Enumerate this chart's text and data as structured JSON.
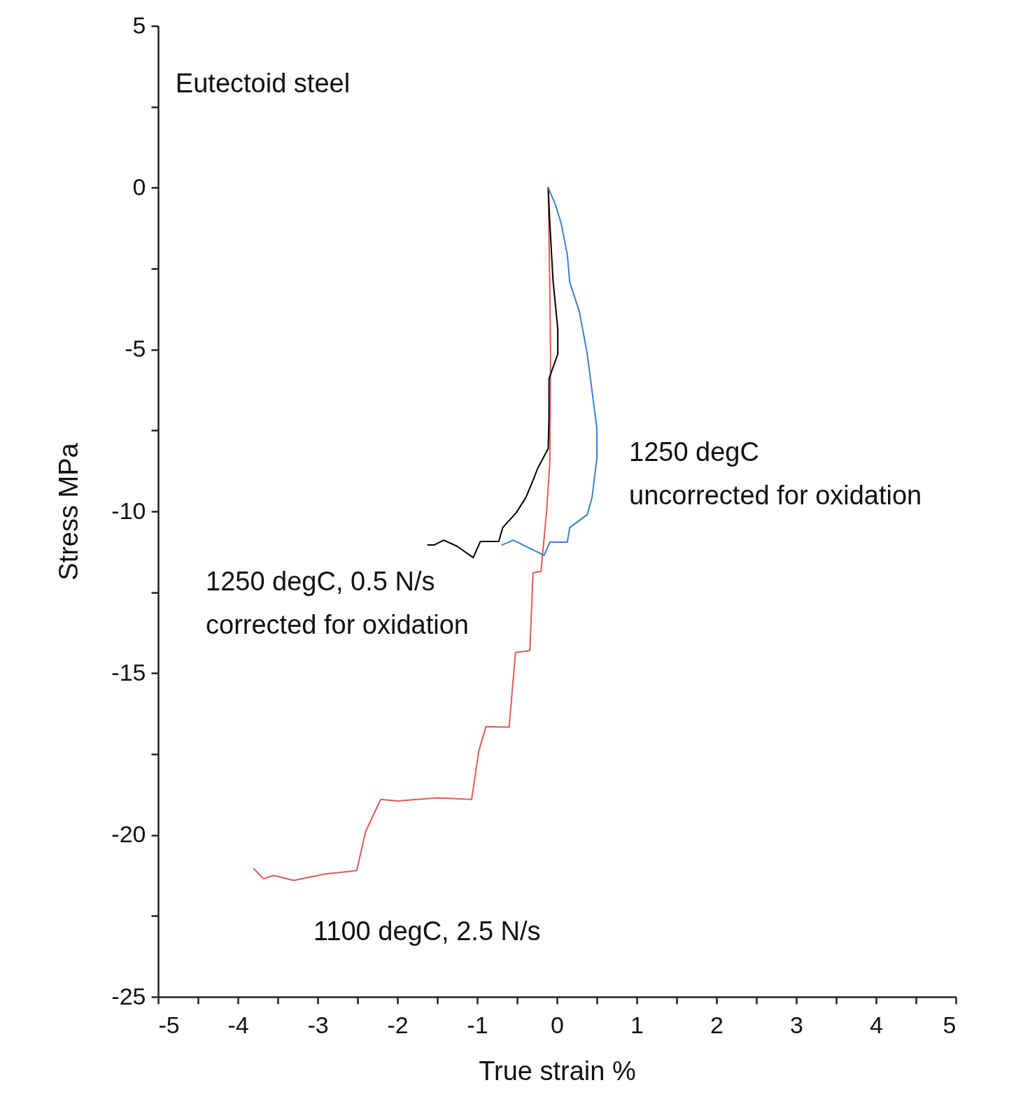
{
  "chart_data": {
    "type": "line",
    "title": "Eutectoid steel",
    "xlabel": "True strain    %",
    "ylabel": "Stress    MPa",
    "xlim": [
      -5,
      5
    ],
    "ylim": [
      -25,
      5
    ],
    "xticks": [
      -5,
      {
        "value": -4.5,
        "label": null
      },
      -4,
      {
        "value": -3.5,
        "label": null
      },
      -3,
      {
        "value": -2.5,
        "label": null
      },
      -2,
      {
        "value": -1.5,
        "label": null
      },
      -1,
      {
        "value": -0.5,
        "label": null
      },
      0,
      {
        "value": 0.5,
        "label": null
      },
      1,
      {
        "value": 1.5,
        "label": null
      },
      2,
      {
        "value": 2.5,
        "label": null
      },
      3,
      {
        "value": 3.5,
        "label": null
      },
      4,
      {
        "value": 4.5,
        "label": null
      },
      5
    ],
    "yticks": [
      -25,
      {
        "value": -22.5,
        "label": null
      },
      -20,
      {
        "value": -17.5,
        "label": null
      },
      -15,
      {
        "value": -12.5,
        "label": null
      },
      -10,
      {
        "value": -7.5,
        "label": null
      },
      -5,
      {
        "value": -2.5,
        "label": null
      },
      0,
      {
        "value": 2.5,
        "label": null
      },
      5
    ],
    "grid": false,
    "series": [
      {
        "color": "#e05a5a",
        "x": [
          -0.11,
          -0.09,
          -0.08,
          -0.09,
          -0.13,
          -0.2,
          -0.3,
          -0.34,
          -0.52,
          -0.6,
          -0.89,
          -0.98,
          -1.07,
          -1.5,
          -2.0,
          -2.21,
          -2.4,
          -2.51,
          -2.9,
          -3.3,
          -3.55,
          -3.68,
          -3.8
        ],
        "values": [
          0,
          -3.1,
          -5.2,
          -8.5,
          -10,
          -11.85,
          -11.9,
          -14.3,
          -14.36,
          -16.67,
          -16.65,
          -17.4,
          -18.9,
          -18.85,
          -18.95,
          -18.9,
          -19.9,
          -21.1,
          -21.2,
          -21.4,
          -21.25,
          -21.35,
          -21.04
        ]
      },
      {
        "color": "#000000",
        "x": [
          -0.11,
          -0.09,
          -0.05,
          0.01,
          0.01,
          -0.1,
          -0.1,
          -0.11,
          -0.24,
          -0.31,
          -0.39,
          -0.51,
          -0.68,
          -0.73,
          -0.96,
          -1.05,
          -1.25,
          -1.42,
          -1.54,
          -1.62
        ],
        "values": [
          0,
          -1.08,
          -2.85,
          -4.36,
          -5.14,
          -5.9,
          -7.06,
          -8.06,
          -8.66,
          -9.1,
          -9.57,
          -10.04,
          -10.5,
          -10.93,
          -10.93,
          -11.43,
          -11.08,
          -10.89,
          -11.04,
          -11.04
        ]
      },
      {
        "color": "#3a7fcf",
        "x": [
          -0.11,
          -0.02,
          0.05,
          0.13,
          0.16,
          0.28,
          0.38,
          0.44,
          0.5,
          0.5,
          0.44,
          0.38,
          0.16,
          0.13,
          -0.09,
          -0.16,
          -0.55,
          -0.69
        ],
        "values": [
          0,
          -0.52,
          -1.08,
          -2.07,
          -2.92,
          -3.82,
          -5.14,
          -6.29,
          -7.43,
          -8.36,
          -9.57,
          -10.1,
          -10.5,
          -10.95,
          -10.95,
          -11.36,
          -10.89,
          -11.04
        ]
      }
    ],
    "annotations": [
      "1250  degC\nuncorrected for oxidation",
      "1250  degC, 0.5 N/s\ncorrected for oxidation",
      "1100  degC, 2.5 N/s"
    ]
  }
}
